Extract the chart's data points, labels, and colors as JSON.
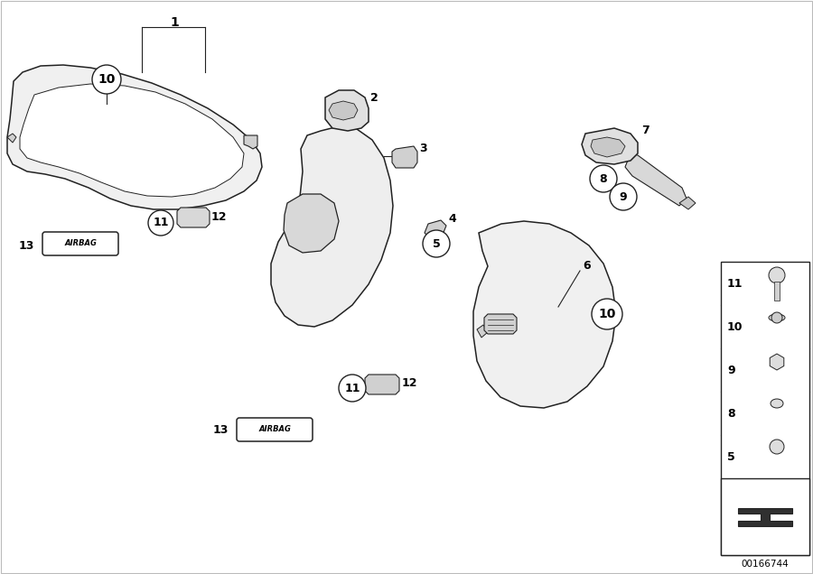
{
  "bg_color": "#ffffff",
  "part_number": "00166744",
  "line_color": "#222222",
  "fill_light": "#f5f5f5",
  "fill_mid": "#e8e8e8",
  "fill_dark": "#cccccc"
}
